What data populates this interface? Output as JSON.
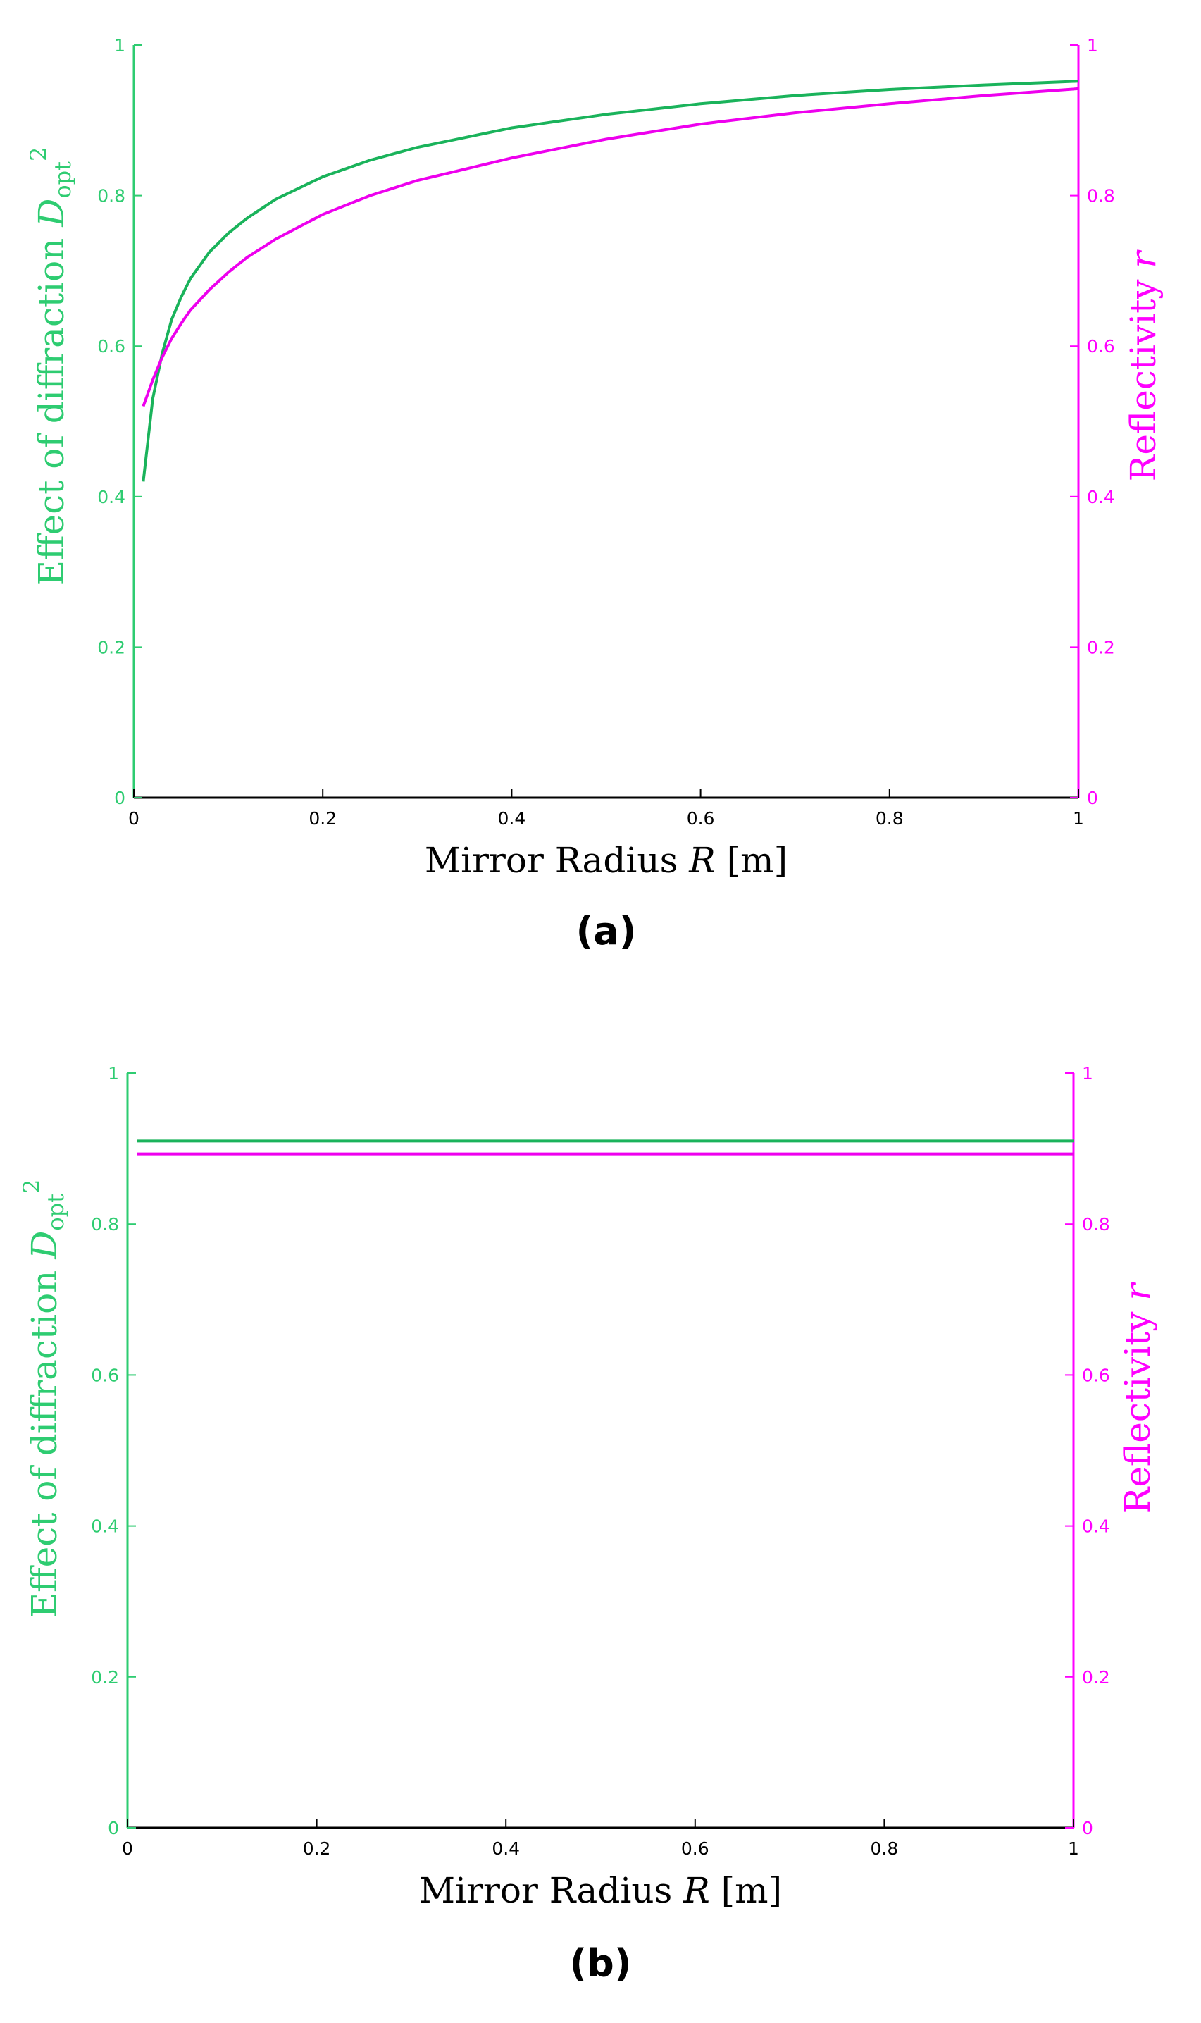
{
  "chart_data": [
    {
      "type": "line",
      "panel_label": "(a)",
      "xlabel": "Mirror Radius",
      "xlabel_symbol": "R",
      "xlabel_unit": "[m]",
      "ylabel_left": "Effect of diffraction",
      "ylabel_left_symbol": "D",
      "ylabel_left_subscript": "opt",
      "ylabel_left_superscript": "2",
      "ylabel_right": "Reflectivity",
      "ylabel_right_symbol": "r",
      "xlim": [
        0,
        1
      ],
      "ylim_left": [
        0,
        1
      ],
      "ylim_right": [
        0,
        1
      ],
      "x_ticks": [
        "0",
        "0.2",
        "0.4",
        "0.6",
        "0.8",
        "1"
      ],
      "y_ticks": [
        "0",
        "0.2",
        "0.4",
        "0.6",
        "0.8",
        "1"
      ],
      "grid": false,
      "colors": {
        "left_axis": "#2ecc71",
        "right_axis": "#ff00ff",
        "left_series": "#1ab35b",
        "right_series": "#ee00ee"
      },
      "series": [
        {
          "axis": "left",
          "x": [
            0.01,
            0.02,
            0.03,
            0.04,
            0.05,
            0.06,
            0.08,
            0.1,
            0.12,
            0.15,
            0.2,
            0.25,
            0.3,
            0.4,
            0.5,
            0.6,
            0.7,
            0.8,
            0.9,
            1.0
          ],
          "y": [
            0.42,
            0.53,
            0.59,
            0.635,
            0.665,
            0.69,
            0.725,
            0.75,
            0.77,
            0.795,
            0.825,
            0.847,
            0.864,
            0.89,
            0.908,
            0.922,
            0.933,
            0.941,
            0.947,
            0.952
          ]
        },
        {
          "axis": "right",
          "x": [
            0.01,
            0.02,
            0.03,
            0.04,
            0.05,
            0.06,
            0.08,
            0.1,
            0.12,
            0.15,
            0.2,
            0.25,
            0.3,
            0.4,
            0.5,
            0.6,
            0.7,
            0.8,
            0.9,
            1.0
          ],
          "y": [
            0.52,
            0.555,
            0.585,
            0.61,
            0.63,
            0.648,
            0.675,
            0.698,
            0.718,
            0.742,
            0.775,
            0.8,
            0.82,
            0.85,
            0.875,
            0.895,
            0.91,
            0.922,
            0.933,
            0.942
          ]
        }
      ]
    },
    {
      "type": "line",
      "panel_label": "(b)",
      "xlabel": "Mirror Radius",
      "xlabel_symbol": "R",
      "xlabel_unit": "[m]",
      "ylabel_left": "Effect of diffraction",
      "ylabel_left_symbol": "D",
      "ylabel_left_subscript": "opt",
      "ylabel_left_superscript": "2",
      "ylabel_right": "Reflectivity",
      "ylabel_right_symbol": "r",
      "xlim": [
        0,
        1
      ],
      "ylim_left": [
        0,
        1
      ],
      "ylim_right": [
        0,
        1
      ],
      "x_ticks": [
        "0",
        "0.2",
        "0.4",
        "0.6",
        "0.8",
        "1"
      ],
      "y_ticks": [
        "0",
        "0.2",
        "0.4",
        "0.6",
        "0.8",
        "1"
      ],
      "grid": false,
      "colors": {
        "left_axis": "#2ecc71",
        "right_axis": "#ff00ff",
        "left_series": "#1ab35b",
        "right_series": "#ee00ee"
      },
      "series": [
        {
          "axis": "left",
          "x": [
            0.01,
            1.0
          ],
          "y": [
            0.91,
            0.91
          ]
        },
        {
          "axis": "right",
          "x": [
            0.01,
            1.0
          ],
          "y": [
            0.893,
            0.893
          ]
        }
      ]
    }
  ]
}
